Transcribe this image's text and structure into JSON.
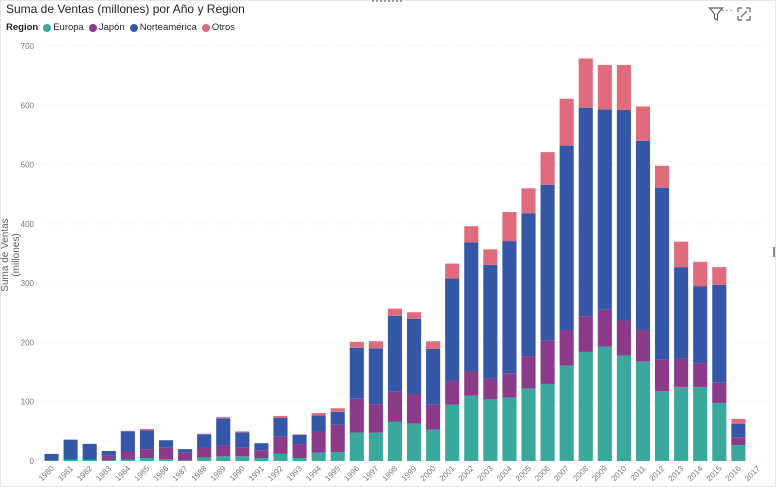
{
  "header": {
    "title": "Suma de Ventas (millones) por Año y Region",
    "legend_title": "Region",
    "more_label": "...",
    "filter_icon": "filter-icon",
    "focus_icon": "focus-mode-icon"
  },
  "chart_data": {
    "type": "bar",
    "stacked": true,
    "title": "Suma de Ventas (millones) por Año y Region",
    "xlabel": "",
    "ylabel": "Suma de Ventas (millones)",
    "ylim": [
      0,
      700
    ],
    "yticks": [
      0,
      100,
      200,
      300,
      400,
      500,
      600,
      700
    ],
    "grid": true,
    "legend_placement": "top-left",
    "categories": [
      "1980",
      "1981",
      "1982",
      "1983",
      "1984",
      "1985",
      "1986",
      "1987",
      "1988",
      "1989",
      "1990",
      "1991",
      "1992",
      "1993",
      "1994",
      "1995",
      "1996",
      "1997",
      "1998",
      "1999",
      "2000",
      "2001",
      "2002",
      "2003",
      "2004",
      "2005",
      "2006",
      "2007",
      "2008",
      "2009",
      "2010",
      "2011",
      "2012",
      "2013",
      "2014",
      "2015",
      "2016",
      "2017"
    ],
    "series": [
      {
        "name": "Europa",
        "color": "#3aa89a",
        "values": [
          1,
          2,
          2,
          1,
          2,
          5,
          3,
          1,
          6,
          8,
          8,
          5,
          12,
          5,
          14,
          15,
          48,
          48,
          66,
          63,
          53,
          95,
          110,
          104,
          107,
          122,
          130,
          161,
          184,
          193,
          178,
          168,
          118,
          125,
          125,
          98,
          27,
          0
        ]
      },
      {
        "name": "Japón",
        "color": "#8c3a8a",
        "values": [
          0,
          0,
          0,
          8,
          14,
          15,
          20,
          13,
          16,
          18,
          15,
          13,
          29,
          23,
          35,
          46,
          57,
          48,
          51,
          50,
          42,
          40,
          41,
          35,
          41,
          55,
          73,
          60,
          60,
          62,
          59,
          53,
          53,
          48,
          40,
          34,
          13,
          0
        ]
      },
      {
        "name": "Norteamérica",
        "color": "#3557a7",
        "values": [
          11,
          34,
          27,
          8,
          34,
          32,
          12,
          6,
          23,
          46,
          25,
          12,
          32,
          16,
          28,
          22,
          86,
          94,
          128,
          127,
          94,
          173,
          218,
          192,
          223,
          241,
          263,
          311,
          352,
          338,
          355,
          319,
          290,
          154,
          130,
          165,
          23,
          0
        ]
      },
      {
        "name": "Otros",
        "color": "#e06b7c",
        "values": [
          0,
          0,
          0,
          0,
          1,
          2,
          0,
          0,
          1,
          2,
          2,
          0,
          3,
          1,
          4,
          6,
          10,
          12,
          12,
          11,
          13,
          25,
          27,
          26,
          49,
          42,
          55,
          79,
          83,
          75,
          76,
          58,
          37,
          43,
          41,
          30,
          8,
          0
        ]
      }
    ]
  }
}
